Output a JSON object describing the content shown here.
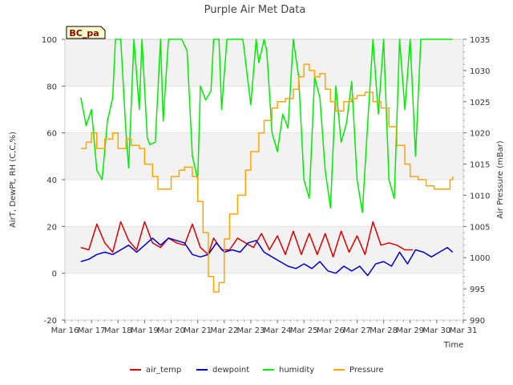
{
  "chart_data": {
    "type": "line",
    "title": "Purple Air Met Data",
    "badge": "BC_pa",
    "xlabel": "Time",
    "ylabel_left": "AirT, DewPt, RH (C,C,%)",
    "ylabel_right": "Air Pressure (mBar)",
    "x_ticks": [
      "Mar 16",
      "Mar 17",
      "Mar 18",
      "Mar 19",
      "Mar 20",
      "Mar 21",
      "Mar 22",
      "Mar 23",
      "Mar 24",
      "Mar 25",
      "Mar 26",
      "Mar 27",
      "Mar 28",
      "Mar 29",
      "Mar 30",
      "Mar 31"
    ],
    "x_range_days": [
      16,
      31
    ],
    "ylim_left": [
      -20,
      100
    ],
    "ylim_right": [
      990,
      1035
    ],
    "y_ticks_left": [
      "-20",
      "0",
      "20",
      "40",
      "60",
      "80",
      "100"
    ],
    "y_ticks_right": [
      "990",
      "995",
      "1000",
      "1005",
      "1010",
      "1015",
      "1020",
      "1025",
      "1030",
      "1035"
    ],
    "bands": [
      [
        80,
        100
      ],
      [
        40,
        60
      ],
      [
        0,
        20
      ]
    ],
    "legend": [
      {
        "name": "air_temp",
        "color": "#dd0000"
      },
      {
        "name": "dewpoint",
        "color": "#0000cc"
      },
      {
        "name": "humidity",
        "color": "#00ee00"
      },
      {
        "name": "Pressure",
        "color": "#ffa500"
      }
    ],
    "series": [
      {
        "name": "air_temp",
        "axis": "left",
        "color": "#dd0000",
        "x": [
          16.6,
          16.9,
          17.2,
          17.5,
          17.8,
          18.1,
          18.4,
          18.7,
          19.0,
          19.3,
          19.6,
          19.9,
          20.2,
          20.5,
          20.8,
          21.1,
          21.4,
          21.6,
          21.9,
          22.2,
          22.5,
          22.8,
          23.1,
          23.4,
          23.7,
          24.0,
          24.3,
          24.6,
          24.9,
          25.2,
          25.5,
          25.8,
          26.1,
          26.4,
          26.7,
          27.0,
          27.3,
          27.6,
          27.9,
          28.2,
          28.5,
          28.8,
          29.1
        ],
        "y": [
          11,
          10,
          21,
          13,
          9,
          22,
          14,
          10,
          22,
          13,
          11,
          15,
          13,
          12,
          21,
          11,
          8,
          15,
          10,
          10,
          15,
          13,
          11,
          17,
          10,
          16,
          8,
          18,
          8,
          17,
          8,
          17,
          7,
          18,
          9,
          16,
          8,
          22,
          12,
          13,
          12,
          10,
          10
        ]
      },
      {
        "name": "dewpoint",
        "axis": "left",
        "color": "#0000cc",
        "x": [
          16.6,
          16.9,
          17.2,
          17.5,
          17.8,
          18.1,
          18.4,
          18.7,
          19.0,
          19.3,
          19.6,
          19.9,
          20.2,
          20.5,
          20.8,
          21.1,
          21.4,
          21.7,
          22.0,
          22.3,
          22.6,
          22.9,
          23.2,
          23.5,
          23.8,
          24.1,
          24.4,
          24.7,
          25.0,
          25.3,
          25.6,
          25.9,
          26.2,
          26.5,
          26.8,
          27.1,
          27.4,
          27.7,
          28.0,
          28.3,
          28.6,
          28.9,
          29.2,
          29.5,
          29.8,
          30.1,
          30.4,
          30.6
        ],
        "y": [
          5,
          6,
          8,
          9,
          8,
          10,
          12,
          9,
          12,
          15,
          12,
          15,
          14,
          13,
          8,
          7,
          8,
          13,
          9,
          10,
          9,
          13,
          14,
          9,
          7,
          5,
          3,
          2,
          4,
          2,
          5,
          1,
          0,
          3,
          1,
          3,
          -1,
          4,
          5,
          3,
          9,
          4,
          10,
          9,
          7,
          9,
          11,
          9
        ]
      },
      {
        "name": "humidity",
        "axis": "left",
        "color": "#00ee00",
        "x": [
          16.6,
          16.8,
          17.0,
          17.2,
          17.4,
          17.6,
          17.8,
          17.9,
          18.1,
          18.3,
          18.4,
          18.6,
          18.8,
          18.9,
          19.1,
          19.2,
          19.4,
          19.6,
          19.7,
          19.9,
          20.0,
          20.2,
          20.4,
          20.6,
          20.8,
          21.0,
          21.1,
          21.3,
          21.5,
          21.6,
          21.8,
          21.9,
          22.1,
          22.3,
          22.5,
          22.7,
          23.0,
          23.2,
          23.3,
          23.5,
          23.6,
          23.8,
          24.0,
          24.2,
          24.4,
          24.6,
          24.8,
          25.0,
          25.2,
          25.4,
          25.6,
          25.8,
          26.0,
          26.2,
          26.4,
          26.6,
          26.8,
          27.0,
          27.2,
          27.4,
          27.6,
          27.8,
          28.0,
          28.2,
          28.4,
          28.6,
          28.8,
          29.0,
          29.2,
          29.4,
          30.0,
          30.6
        ],
        "y": [
          75,
          63,
          70,
          44,
          40,
          65,
          75,
          100,
          100,
          60,
          45,
          100,
          70,
          100,
          58,
          55,
          56,
          100,
          65,
          100,
          100,
          100,
          100,
          95,
          50,
          40,
          80,
          74,
          78,
          100,
          100,
          70,
          100,
          100,
          100,
          100,
          72,
          100,
          90,
          100,
          95,
          60,
          52,
          68,
          62,
          100,
          84,
          40,
          32,
          84,
          75,
          44,
          28,
          80,
          56,
          64,
          82,
          40,
          26,
          64,
          100,
          68,
          100,
          40,
          32,
          100,
          70,
          100,
          50,
          100,
          100,
          100
        ]
      },
      {
        "name": "Pressure",
        "axis": "right",
        "color": "#ffa500",
        "x": [
          16.6,
          16.8,
          17.0,
          17.2,
          17.5,
          17.8,
          18.0,
          18.3,
          18.5,
          18.8,
          19.0,
          19.3,
          19.5,
          19.8,
          20.0,
          20.3,
          20.5,
          20.8,
          21.0,
          21.2,
          21.4,
          21.6,
          21.8,
          22.0,
          22.2,
          22.5,
          22.8,
          23.0,
          23.3,
          23.5,
          23.8,
          24.0,
          24.3,
          24.6,
          24.8,
          25.0,
          25.2,
          25.4,
          25.6,
          25.8,
          26.0,
          26.2,
          26.5,
          26.8,
          27.0,
          27.3,
          27.6,
          27.9,
          28.2,
          28.5,
          28.8,
          29.0,
          29.3,
          29.6,
          29.9,
          30.2,
          30.5,
          30.6
        ],
        "y": [
          1017.5,
          1018.5,
          1020,
          1017.5,
          1019,
          1020,
          1017.5,
          1019,
          1018,
          1017.5,
          1015,
          1013,
          1011,
          1011,
          1013,
          1014,
          1014.5,
          1013,
          1009,
          1004,
          997,
          994.5,
          996,
          1003,
          1007,
          1010,
          1014,
          1017,
          1020,
          1022,
          1024,
          1025,
          1025.5,
          1027,
          1029,
          1031,
          1030,
          1029,
          1029.5,
          1027,
          1025,
          1023.5,
          1025,
          1025.5,
          1026,
          1026.5,
          1025,
          1024,
          1021,
          1018,
          1015,
          1013,
          1012.5,
          1011.5,
          1011,
          1011,
          1012.5,
          1013
        ]
      }
    ]
  }
}
